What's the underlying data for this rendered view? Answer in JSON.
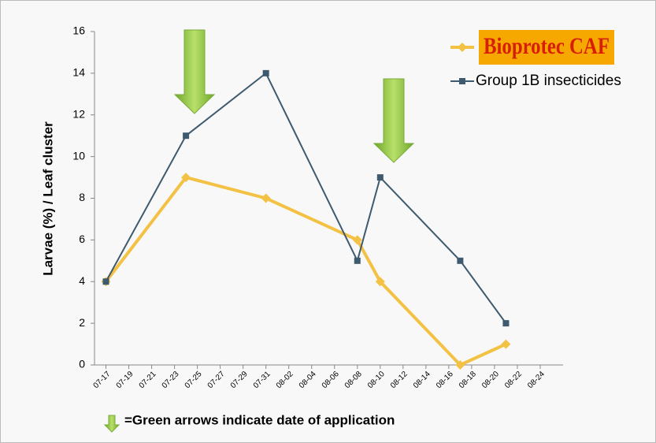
{
  "chart_data": {
    "type": "line",
    "ylabel": "Larvae (%)  / Leaf cluster",
    "note": "=Green arrows indicate date of application",
    "xlim": [
      "07-16",
      "08-26"
    ],
    "xticks": [
      "07-17",
      "07-19",
      "07-21",
      "07-23",
      "07-25",
      "07-27",
      "07-29",
      "07-31",
      "08-02",
      "08-04",
      "08-06",
      "08-08",
      "08-10",
      "08-12",
      "08-14",
      "08-16",
      "08-18",
      "08-20",
      "08-22",
      "08-24"
    ],
    "ylim": [
      0,
      16
    ],
    "yticks": [
      0,
      2,
      4,
      6,
      8,
      10,
      12,
      14,
      16
    ],
    "legend": "top-right",
    "series": [
      {
        "name": "Bioprotec CAF",
        "color": "#f3c244",
        "x": [
          "07-17",
          "07-24",
          "07-31",
          "08-08",
          "08-10",
          "08-17",
          "08-21"
        ],
        "values": [
          4,
          9,
          8,
          6,
          4,
          0,
          1
        ]
      },
      {
        "name": "Group 1B insecticides",
        "color": "#3e5a6e",
        "x": [
          "07-17",
          "07-24",
          "07-31",
          "08-08",
          "08-10",
          "08-17",
          "08-21"
        ],
        "values": [
          4,
          11,
          14,
          5,
          9,
          5,
          2
        ]
      }
    ]
  }
}
